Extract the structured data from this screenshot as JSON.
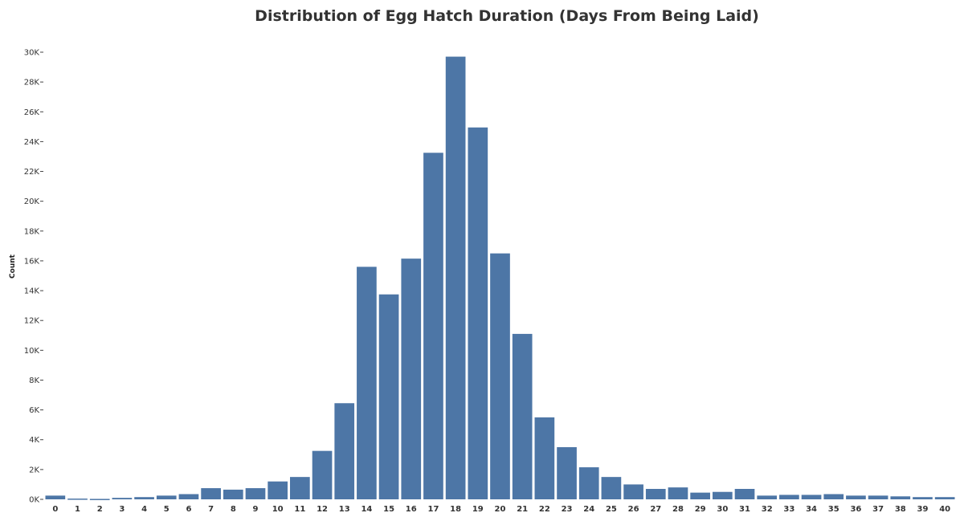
{
  "chart_data": {
    "type": "bar",
    "title": "Distribution of Egg Hatch Duration (Days From Being Laid)",
    "xlabel": "",
    "ylabel": "Count",
    "ylim": [
      0,
      30000
    ],
    "yticks": [
      0,
      2000,
      4000,
      6000,
      8000,
      10000,
      12000,
      14000,
      16000,
      18000,
      20000,
      22000,
      24000,
      26000,
      28000,
      30000
    ],
    "ytick_labels": [
      "0K",
      "2K",
      "4K",
      "6K",
      "8K",
      "10K",
      "12K",
      "14K",
      "16K",
      "18K",
      "20K",
      "22K",
      "24K",
      "26K",
      "28K",
      "30K"
    ],
    "categories": [
      "0",
      "1",
      "2",
      "3",
      "4",
      "5",
      "6",
      "7",
      "8",
      "9",
      "10",
      "11",
      "12",
      "13",
      "14",
      "15",
      "16",
      "17",
      "18",
      "19",
      "20",
      "21",
      "22",
      "23",
      "24",
      "25",
      "26",
      "27",
      "28",
      "29",
      "30",
      "31",
      "32",
      "33",
      "34",
      "35",
      "36",
      "37",
      "38",
      "39",
      "40"
    ],
    "values": [
      250,
      50,
      30,
      100,
      150,
      250,
      350,
      750,
      650,
      750,
      1200,
      1500,
      3250,
      6450,
      15600,
      13750,
      16150,
      23250,
      29700,
      24950,
      16500,
      11100,
      5500,
      3500,
      2150,
      1500,
      1000,
      700,
      800,
      450,
      500,
      700,
      250,
      300,
      300,
      350,
      250,
      250,
      200,
      150,
      150
    ],
    "bar_color": "#4d76a6",
    "grid": false,
    "legend": "none"
  }
}
